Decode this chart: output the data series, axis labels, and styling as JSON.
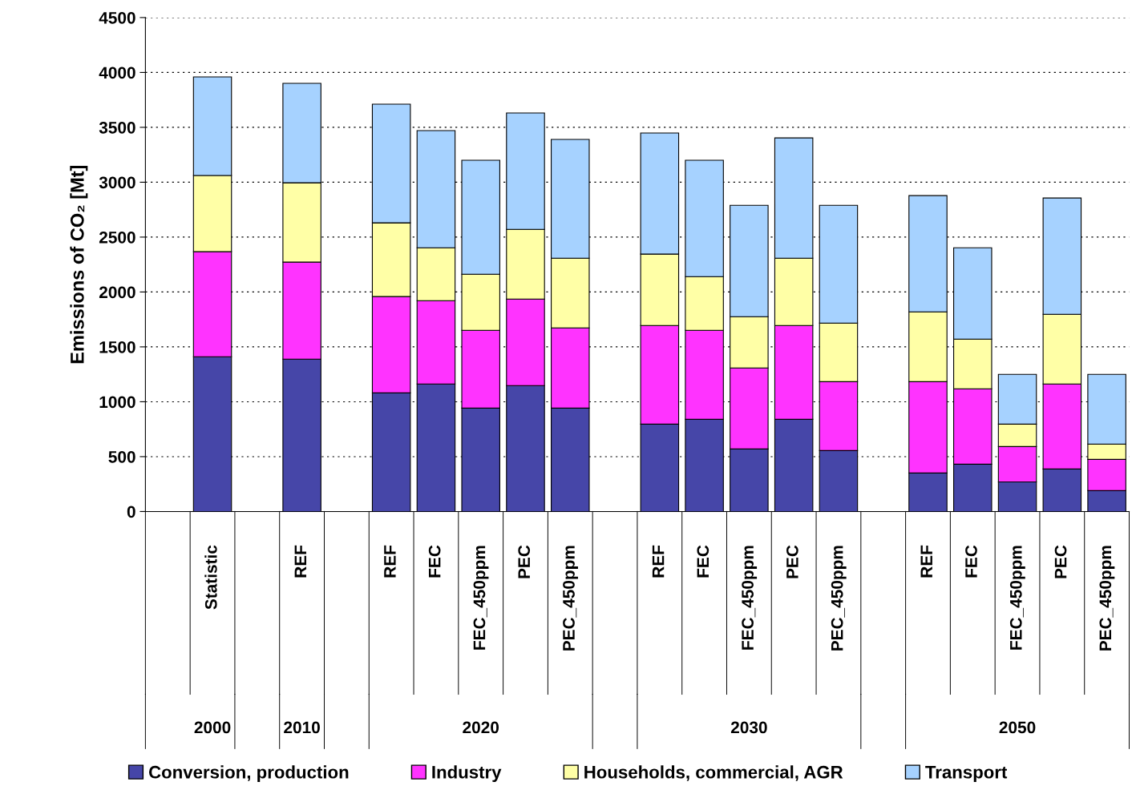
{
  "chart_data": {
    "type": "bar",
    "stacked": true,
    "ylabel": "Emissions of CO₂ [Mt]",
    "categories": [
      null,
      "Statistic",
      null,
      "REF",
      null,
      "REF",
      "FEC",
      "FEC_450ppm",
      "PEC",
      "PEC_450ppm",
      null,
      "REF",
      "FEC",
      "FEC_450ppm",
      "PEC",
      "PEC_450ppm",
      null,
      "REF",
      "FEC",
      "FEC_450ppm",
      "PEC",
      "PEC_450ppm"
    ],
    "series": [
      {
        "name": "Conversion, production",
        "color": "#4646a8",
        "values": [
          null,
          1410,
          null,
          1388,
          null,
          1081,
          1162,
          942,
          1147,
          942,
          null,
          796,
          840,
          570,
          840,
          555,
          null,
          351,
          431,
          270,
          387,
          190
        ]
      },
      {
        "name": "Industry",
        "color": "#ff33ff",
        "values": [
          null,
          957,
          null,
          884,
          null,
          877,
          759,
          709,
          789,
          731,
          null,
          899,
          811,
          738,
          855,
          628,
          null,
          832,
          687,
          322,
          775,
          285
        ]
      },
      {
        "name": "Households, commercial, AGR",
        "color": "#ffffa6",
        "values": [
          null,
          694,
          null,
          723,
          null,
          672,
          482,
          511,
          635,
          635,
          null,
          650,
          489,
          467,
          613,
          534,
          null,
          636,
          453,
          204,
          635,
          139
        ]
      },
      {
        "name": "Transport",
        "color": "#a6d2ff",
        "values": [
          null,
          898,
          null,
          906,
          null,
          1081,
          1067,
          1038,
          1060,
          1082,
          null,
          1103,
          1060,
          1015,
          1096,
          1073,
          null,
          1059,
          832,
          453,
          1059,
          635
        ]
      }
    ],
    "annotations": [
      "2000",
      "2010",
      "2020",
      "2030",
      "2050"
    ],
    "ylim": [
      0,
      4500
    ],
    "yticks": [
      0,
      500,
      1000,
      1500,
      2000,
      2500,
      3000,
      3500,
      4000,
      4500
    ],
    "grid": "y",
    "legend": "bottom"
  }
}
